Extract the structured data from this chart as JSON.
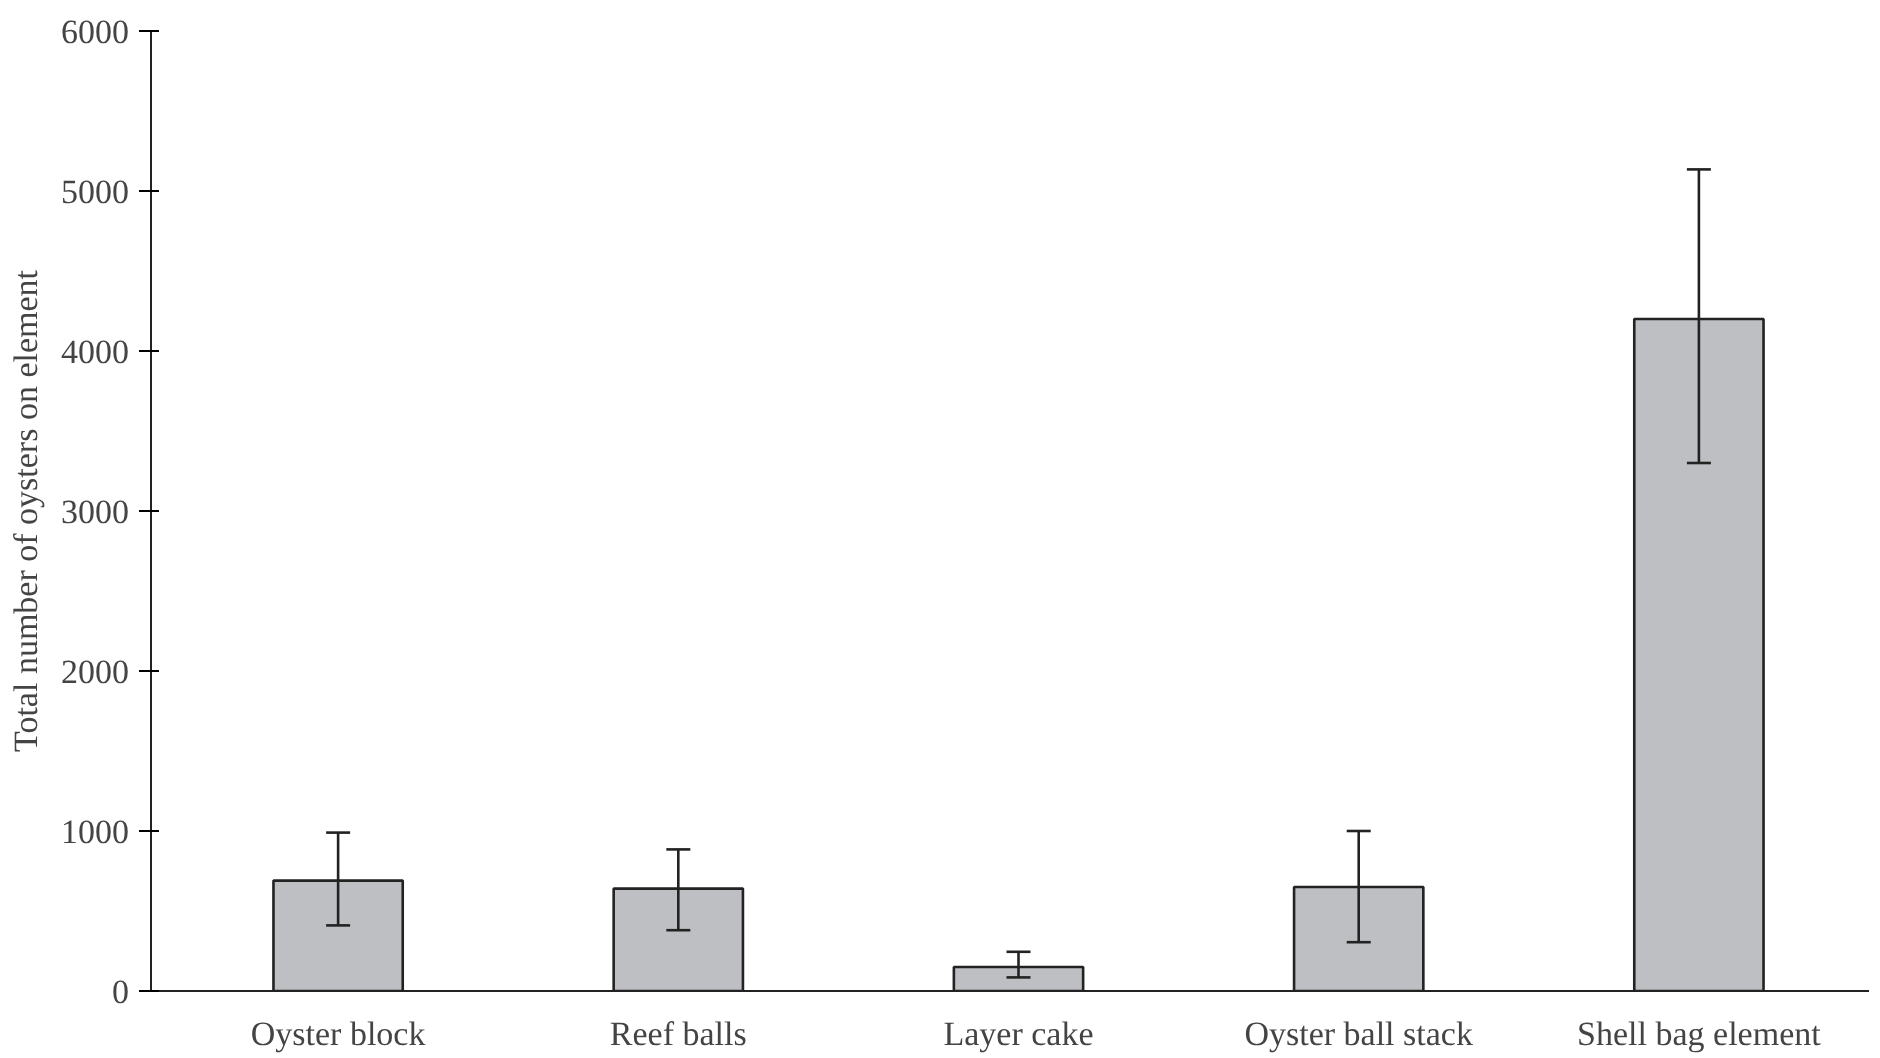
{
  "chart_data": {
    "type": "bar",
    "ylabel": "Total number of oysters on element",
    "categories": [
      "Oyster block",
      "Reef balls",
      "Layer cake",
      "Oyster ball stack",
      "Shell bag element"
    ],
    "values": [
      690,
      640,
      150,
      650,
      4200
    ],
    "errors": [
      [
        410,
        990
      ],
      [
        380,
        885
      ],
      [
        85,
        245
      ],
      [
        305,
        1000
      ],
      [
        3300,
        5135
      ]
    ],
    "color": "#bebfc3",
    "ylim": [
      0,
      6000
    ],
    "yticks": [
      0,
      1000,
      2000,
      3000,
      4000,
      5000,
      6000
    ],
    "grid": false
  }
}
